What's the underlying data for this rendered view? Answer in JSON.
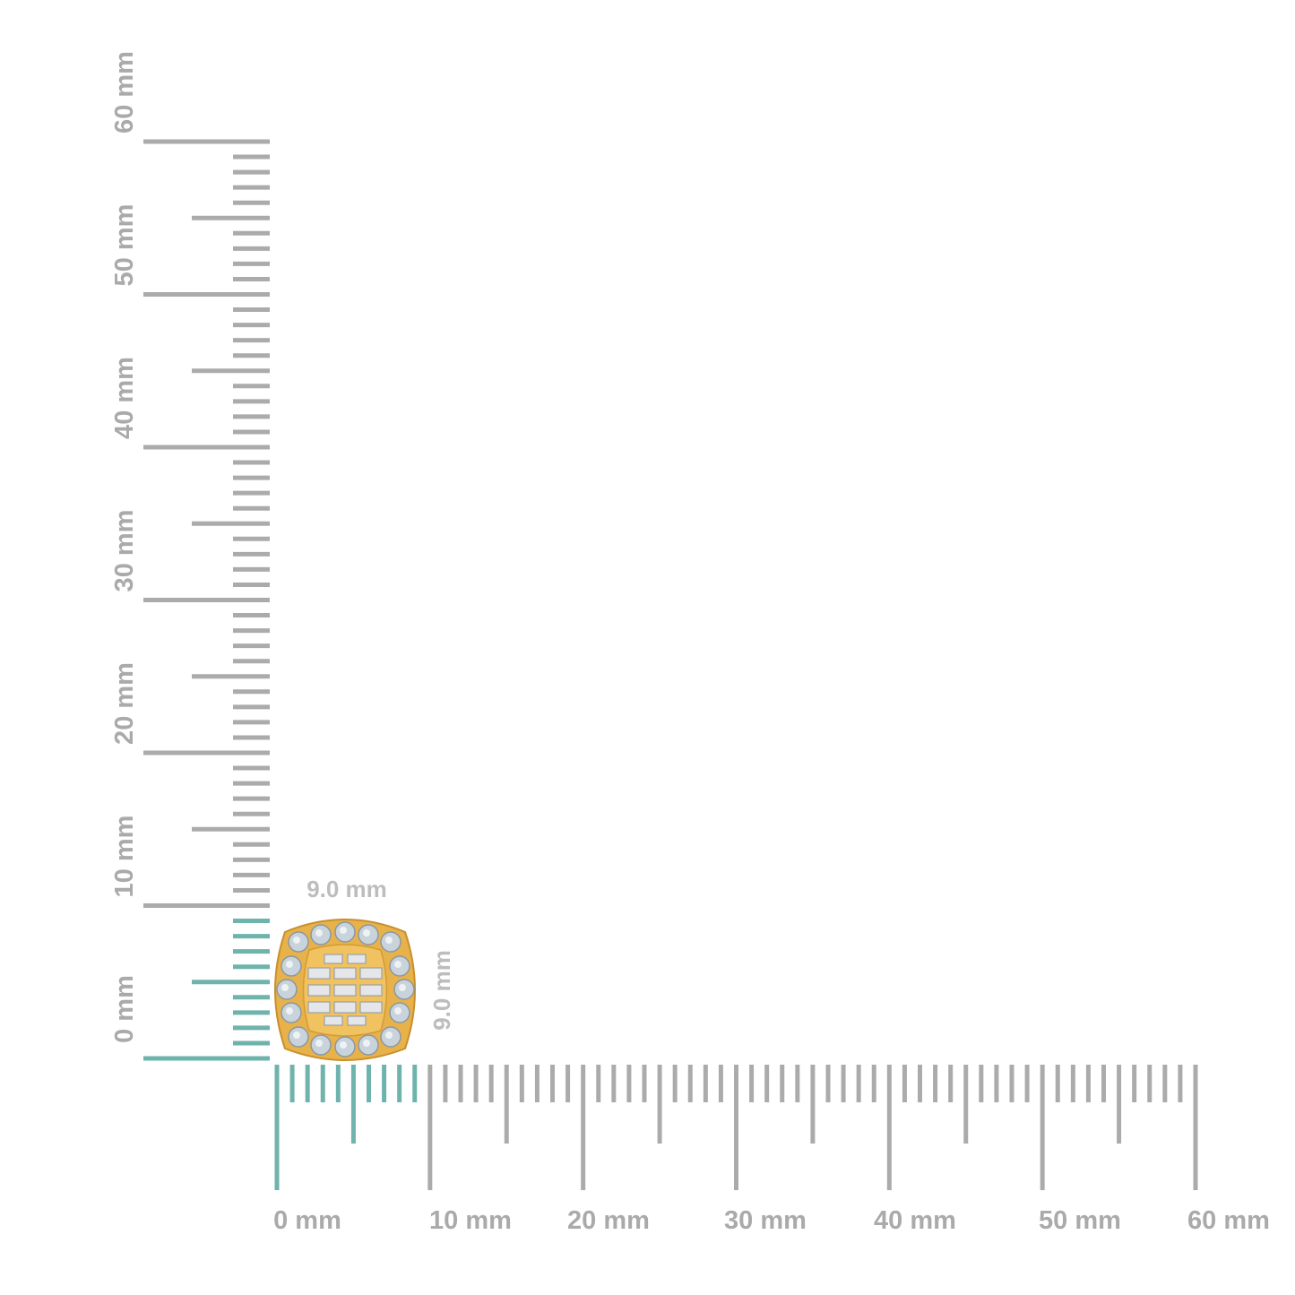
{
  "rulers": {
    "unit": "mm",
    "range_mm": [
      0,
      60
    ],
    "major_step_mm": 10,
    "highlight_to_mm": 9,
    "horizontal_labels": [
      "0 mm",
      "10 mm",
      "20 mm",
      "30 mm",
      "40 mm",
      "50 mm",
      "60 mm"
    ],
    "vertical_labels": [
      "0 mm",
      "10 mm",
      "20 mm",
      "30 mm",
      "40 mm",
      "50 mm",
      "60 mm"
    ]
  },
  "product": {
    "width_label": "9.0 mm",
    "height_label": "9.0 mm",
    "width_mm": 9.0,
    "height_mm": 9.0,
    "metal_color": "#e8b24a"
  },
  "colors": {
    "tick": "#ababab",
    "highlight_tick": "#6fb3ad",
    "label": "#aaaaaa"
  }
}
